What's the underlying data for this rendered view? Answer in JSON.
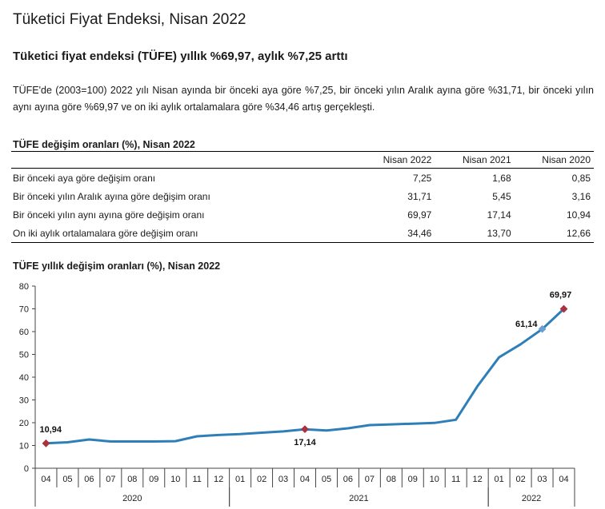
{
  "header": {
    "title": "Tüketici Fiyat Endeksi, Nisan 2022",
    "subtitle": "Tüketici fiyat endeksi (TÜFE) yıllık %69,97, aylık %7,25 arttı",
    "description": "TÜFE'de (2003=100) 2022 yılı Nisan ayında bir önceki aya göre %7,25, bir önceki yılın Aralık ayına göre %31,71, bir önceki yılın aynı ayına göre %69,97 ve on iki aylık ortalamalara göre %34,46 artış gerçekleşti."
  },
  "rates_table": {
    "title": "TÜFE değişim oranları (%), Nisan 2022",
    "columns": [
      "Nisan 2022",
      "Nisan 2021",
      "Nisan 2020"
    ],
    "rows": [
      {
        "label": "Bir önceki aya göre değişim oranı",
        "values": [
          "7,25",
          "1,68",
          "0,85"
        ]
      },
      {
        "label": "Bir önceki yılın Aralık ayına göre değişim oranı",
        "values": [
          "31,71",
          "5,45",
          "3,16"
        ]
      },
      {
        "label": "Bir önceki yılın aynı ayına göre değişim oranı",
        "values": [
          "69,97",
          "17,14",
          "10,94"
        ]
      },
      {
        "label": "On iki aylık ortalamalara göre değişim oranı",
        "values": [
          "34,46",
          "13,70",
          "12,66"
        ]
      }
    ]
  },
  "chart_data": {
    "type": "line",
    "title": "TÜFE yıllık değişim oranları (%), Nisan 2022",
    "xlabel": "",
    "ylabel": "",
    "ylim": [
      0,
      80
    ],
    "yticks": [
      0,
      10,
      20,
      30,
      40,
      50,
      60,
      70,
      80
    ],
    "grid": false,
    "categories": [
      "04",
      "05",
      "06",
      "07",
      "08",
      "09",
      "10",
      "11",
      "12",
      "01",
      "02",
      "03",
      "04",
      "05",
      "06",
      "07",
      "08",
      "09",
      "10",
      "11",
      "12",
      "01",
      "02",
      "03",
      "04"
    ],
    "year_groups": [
      {
        "label": "2020",
        "start": 0,
        "end": 8
      },
      {
        "label": "2021",
        "start": 9,
        "end": 20
      },
      {
        "label": "2022",
        "start": 21,
        "end": 24
      }
    ],
    "series": [
      {
        "values": [
          10.94,
          11.39,
          12.62,
          11.76,
          11.77,
          11.75,
          11.89,
          14.03,
          14.6,
          14.97,
          15.61,
          16.19,
          17.14,
          16.59,
          17.53,
          18.95,
          19.25,
          19.58,
          19.89,
          21.31,
          36.08,
          48.69,
          54.44,
          61.14,
          69.97
        ],
        "color": "#2e7fb8"
      }
    ],
    "markers": [
      {
        "index": 0,
        "label": "10,94",
        "color": "#a8323e"
      },
      {
        "index": 12,
        "label": "17,14",
        "color": "#a8323e"
      },
      {
        "index": 23,
        "label": "61,14",
        "color": "#6a9fd0"
      },
      {
        "index": 24,
        "label": "69,97",
        "color": "#a8323e"
      }
    ]
  }
}
